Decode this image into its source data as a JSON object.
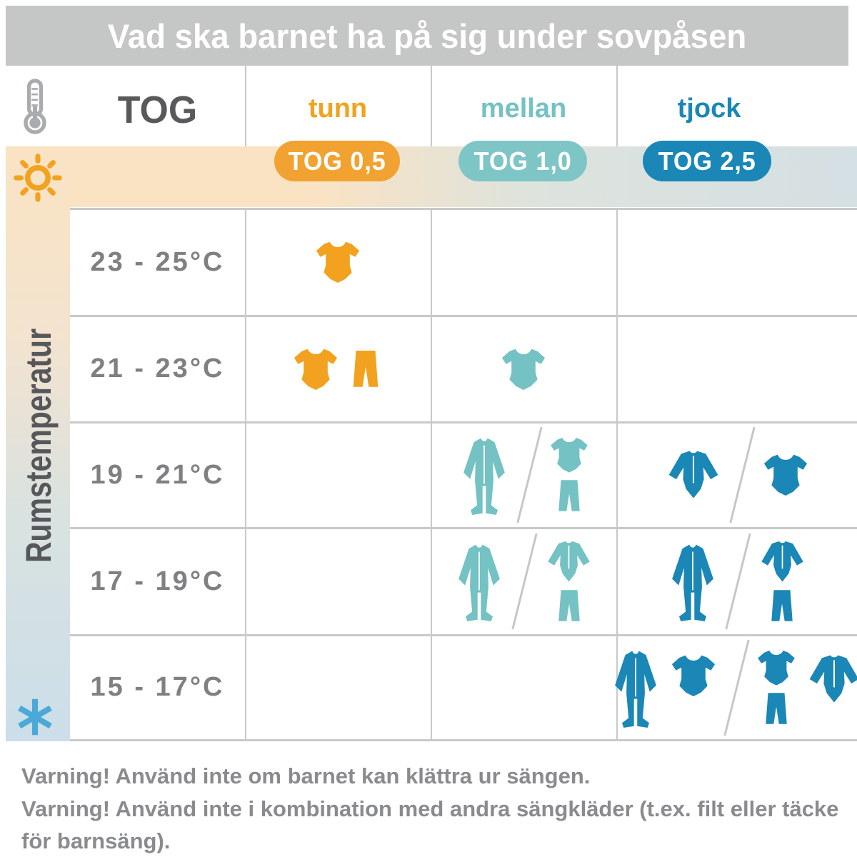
{
  "title": "Vad ska barnet ha på sig under sovpåsen",
  "header": {
    "tog_label": "TOG",
    "thermometer_icon": "thermometer-icon",
    "columns": [
      {
        "key": "tunn",
        "label": "tunn",
        "badge": "TOG 0,5",
        "color": "#f2a21e"
      },
      {
        "key": "mellan",
        "label": "mellan",
        "badge": "TOG 1,0",
        "color": "#74c2c3"
      },
      {
        "key": "tjock",
        "label": "tjock",
        "badge": "TOG 2,5",
        "color": "#1a87b6"
      }
    ]
  },
  "axis": {
    "label": "Rumstemperatur",
    "warm_icon": "sun-icon",
    "cold_icon": "snowflake-icon"
  },
  "icons": {
    "bodysuit-short": "short-sleeve bodysuit",
    "bodysuit-long": "long-sleeve bodysuit",
    "pants": "pants",
    "sleepsuit": "footed sleepsuit",
    "thermometer-icon": "thermometer",
    "sun-icon": "sun",
    "snowflake-icon": "snowflake"
  },
  "rows": [
    {
      "temp": "23 - 25°C",
      "cells": {
        "tunn": {
          "options": [
            {
              "groups": [
                {
                  "items": [
                    "bodysuit-short"
                  ]
                }
              ]
            }
          ]
        },
        "mellan": {
          "options": []
        },
        "tjock": {
          "options": []
        }
      }
    },
    {
      "temp": "21 - 23°C",
      "cells": {
        "tunn": {
          "options": [
            {
              "groups": [
                {
                  "items": [
                    "bodysuit-short"
                  ]
                },
                {
                  "items": [
                    "pants"
                  ]
                }
              ]
            }
          ]
        },
        "mellan": {
          "options": [
            {
              "groups": [
                {
                  "items": [
                    "bodysuit-short"
                  ]
                }
              ]
            }
          ]
        },
        "tjock": {
          "options": []
        }
      }
    },
    {
      "temp": "19 - 21°C",
      "cells": {
        "tunn": {
          "options": []
        },
        "mellan": {
          "options": [
            {
              "groups": [
                {
                  "items": [
                    "sleepsuit"
                  ]
                }
              ]
            },
            {
              "groups": [
                {
                  "items": [
                    "bodysuit-short",
                    "pants"
                  ]
                }
              ]
            }
          ]
        },
        "tjock": {
          "options": [
            {
              "groups": [
                {
                  "items": [
                    "bodysuit-long"
                  ]
                }
              ]
            },
            {
              "groups": [
                {
                  "items": [
                    "bodysuit-short"
                  ]
                }
              ]
            }
          ]
        }
      }
    },
    {
      "temp": "17 - 19°C",
      "cells": {
        "tunn": {
          "options": []
        },
        "mellan": {
          "options": [
            {
              "groups": [
                {
                  "items": [
                    "sleepsuit"
                  ]
                }
              ]
            },
            {
              "groups": [
                {
                  "items": [
                    "bodysuit-long",
                    "pants"
                  ]
                }
              ]
            }
          ]
        },
        "tjock": {
          "options": [
            {
              "groups": [
                {
                  "items": [
                    "sleepsuit"
                  ]
                }
              ]
            },
            {
              "groups": [
                {
                  "items": [
                    "bodysuit-long",
                    "pants"
                  ]
                }
              ]
            }
          ]
        }
      }
    },
    {
      "temp": "15 - 17°C",
      "cells": {
        "tunn": {
          "options": []
        },
        "mellan": {
          "options": []
        },
        "tjock": {
          "options": [
            {
              "groups": [
                {
                  "items": [
                    "sleepsuit"
                  ]
                },
                {
                  "items": [
                    "bodysuit-short"
                  ],
                  "align": "top"
                }
              ]
            },
            {
              "groups": [
                {
                  "items": [
                    "bodysuit-short",
                    "pants"
                  ]
                },
                {
                  "items": [
                    "bodysuit-long"
                  ],
                  "align": "top"
                }
              ]
            }
          ]
        }
      }
    }
  ],
  "warnings": [
    "Varning! Använd inte om barnet kan klättra ur sängen.",
    "Varning! Använd inte i kombination med andra sängkläder (t.ex. filt eller täcke för barnsäng)."
  ],
  "colors": {
    "title_bar": "#c5c6c6",
    "grid_line": "#c8c9ca",
    "temp_text": "#7e8083",
    "warning_text": "#898b8e",
    "band_warm": "#fae3c3",
    "band_cold": "#d5e0e4",
    "sun": "#f2a21e",
    "snowflake": "#4ba9d8",
    "thermometer": "#a9abae"
  }
}
